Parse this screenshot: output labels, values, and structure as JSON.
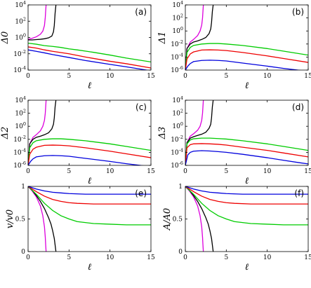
{
  "colors": {
    "magenta": "#dd00dd",
    "black": "#000000",
    "green": "#00cc00",
    "red": "#ee0000",
    "blue": "#0000dd"
  },
  "chart_data": [
    {
      "panel": "(a)",
      "type": "line",
      "ylabel": "Δ0",
      "xlabel": "ℓ",
      "xlim": [
        0,
        15
      ],
      "ylim": [
        0.0001,
        10000
      ],
      "yscale": "log",
      "xticks": [
        0,
        5,
        10,
        15
      ],
      "yticks": [
        {
          "v": 0.0001,
          "e": "-4"
        },
        {
          "v": 0.01,
          "e": "-2"
        },
        {
          "v": 1,
          "e": "0"
        },
        {
          "v": 100,
          "e": "2"
        },
        {
          "v": 10000,
          "e": "4"
        }
      ],
      "series": [
        {
          "color": "magenta",
          "x": [
            0,
            0.5,
            1,
            1.5,
            1.8,
            2.0,
            2.1,
            2.15,
            2.2
          ],
          "y": [
            0.6,
            0.8,
            1.2,
            2.5,
            6,
            30,
            300,
            2000,
            10000
          ]
        },
        {
          "color": "black",
          "x": [
            0,
            0.5,
            1,
            1.5,
            2,
            2.5,
            2.9,
            3.1,
            3.2,
            3.3,
            3.4
          ],
          "y": [
            0.5,
            0.5,
            0.55,
            0.6,
            0.7,
            0.9,
            1.5,
            5,
            30,
            1000,
            10000
          ]
        },
        {
          "color": "green",
          "x": [
            0,
            1,
            2,
            3,
            4,
            5,
            6,
            8,
            10,
            12,
            15
          ],
          "y": [
            0.2,
            0.15,
            0.1,
            0.08,
            0.06,
            0.04,
            0.03,
            0.015,
            0.007,
            0.003,
            0.001
          ]
        },
        {
          "color": "red",
          "x": [
            0,
            1,
            2,
            3,
            5,
            7,
            10,
            12,
            15
          ],
          "y": [
            0.07,
            0.05,
            0.03,
            0.02,
            0.01,
            0.004,
            0.0012,
            0.0006,
            0.00018
          ]
        },
        {
          "color": "blue",
          "x": [
            0,
            1,
            2,
            3,
            5,
            7,
            10,
            12,
            14,
            15
          ],
          "y": [
            0.03,
            0.02,
            0.013,
            0.008,
            0.0035,
            0.0015,
            0.0005,
            0.00025,
            0.00012,
            8e-05
          ]
        }
      ]
    },
    {
      "panel": "(b)",
      "type": "line",
      "ylabel": "Δ1",
      "xlabel": "ℓ",
      "xlim": [
        0,
        15
      ],
      "ylim": [
        1e-06,
        10000
      ],
      "yscale": "log",
      "xticks": [
        0,
        5,
        10,
        15
      ],
      "yticks": [
        {
          "v": 1e-06,
          "e": "-6"
        },
        {
          "v": 0.0001,
          "e": "-4"
        },
        {
          "v": 0.01,
          "e": "-2"
        },
        {
          "v": 1,
          "e": "0"
        },
        {
          "v": 100,
          "e": "2"
        },
        {
          "v": 10000,
          "e": "4"
        }
      ],
      "series": [
        {
          "color": "magenta",
          "x": [
            0,
            0.2,
            0.6,
            1,
            1.5,
            1.8,
            2.0,
            2.1,
            2.15,
            2.2
          ],
          "y": [
            1e-06,
            0.002,
            0.02,
            0.05,
            0.2,
            1,
            8,
            100,
            1000,
            10000
          ]
        },
        {
          "color": "black",
          "x": [
            0,
            0.2,
            0.6,
            1,
            1.5,
            2,
            2.5,
            2.9,
            3.1,
            3.2,
            3.3,
            3.4
          ],
          "y": [
            1e-06,
            0.002,
            0.01,
            0.02,
            0.03,
            0.05,
            0.1,
            0.4,
            2,
            20,
            1000,
            10000
          ]
        },
        {
          "color": "green",
          "x": [
            0,
            0.2,
            0.6,
            1,
            2,
            3,
            4,
            5,
            7,
            10,
            12,
            15
          ],
          "y": [
            1e-06,
            0.0005,
            0.003,
            0.006,
            0.01,
            0.012,
            0.012,
            0.01,
            0.006,
            0.002,
            0.0008,
            0.0002
          ]
        },
        {
          "color": "red",
          "x": [
            0,
            0.2,
            0.6,
            1,
            2,
            3,
            4,
            5,
            7,
            10,
            12,
            15
          ],
          "y": [
            1e-06,
            5e-05,
            0.0003,
            0.0006,
            0.0012,
            0.0013,
            0.0012,
            0.001,
            0.0005,
            0.00015,
            6e-05,
            1.5e-05
          ]
        },
        {
          "color": "blue",
          "x": [
            0,
            0.3,
            0.6,
            1,
            2,
            3,
            4,
            5,
            7,
            10,
            12,
            14,
            15
          ],
          "y": [
            1e-06,
            4e-06,
            1e-05,
            2e-05,
            3e-05,
            3.3e-05,
            3e-05,
            2.5e-05,
            1.2e-05,
            4e-06,
            1.8e-06,
            9e-07,
            6e-07
          ]
        }
      ]
    },
    {
      "panel": "(c)",
      "type": "line",
      "ylabel": "Δ2",
      "xlabel": "ℓ",
      "xlim": [
        0,
        15
      ],
      "ylim": [
        1e-06,
        10000
      ],
      "yscale": "log",
      "xticks": [
        0,
        5,
        10,
        15
      ],
      "yticks": [
        {
          "v": 1e-06,
          "e": "-6"
        },
        {
          "v": 0.0001,
          "e": "-4"
        },
        {
          "v": 0.01,
          "e": "-2"
        },
        {
          "v": 1,
          "e": "0"
        },
        {
          "v": 100,
          "e": "2"
        },
        {
          "v": 10000,
          "e": "4"
        }
      ],
      "series": [
        {
          "color": "magenta",
          "x": [
            0,
            0.2,
            0.6,
            1,
            1.5,
            1.8,
            2.0,
            2.1,
            2.15,
            2.2
          ],
          "y": [
            1e-06,
            0.002,
            0.02,
            0.05,
            0.2,
            1,
            8,
            100,
            1000,
            10000
          ]
        },
        {
          "color": "black",
          "x": [
            0,
            0.2,
            0.6,
            1,
            1.5,
            2,
            2.5,
            2.9,
            3.1,
            3.2,
            3.3,
            3.4
          ],
          "y": [
            1e-06,
            0.002,
            0.01,
            0.02,
            0.03,
            0.05,
            0.1,
            0.4,
            2,
            20,
            1000,
            10000
          ]
        },
        {
          "color": "green",
          "x": [
            0,
            0.2,
            0.6,
            1,
            2,
            3,
            4,
            5,
            7,
            10,
            12,
            15
          ],
          "y": [
            1e-06,
            0.0005,
            0.003,
            0.006,
            0.01,
            0.012,
            0.012,
            0.01,
            0.006,
            0.002,
            0.0008,
            0.0002
          ]
        },
        {
          "color": "red",
          "x": [
            0,
            0.2,
            0.6,
            1,
            2,
            3,
            4,
            5,
            7,
            10,
            12,
            15
          ],
          "y": [
            1e-06,
            5e-05,
            0.0003,
            0.0006,
            0.0012,
            0.0013,
            0.0012,
            0.001,
            0.0005,
            0.00015,
            6e-05,
            1.5e-05
          ]
        },
        {
          "color": "blue",
          "x": [
            0,
            0.3,
            0.6,
            1,
            2,
            3,
            4,
            5,
            7,
            10,
            12,
            14,
            15
          ],
          "y": [
            1e-06,
            4e-06,
            1e-05,
            2e-05,
            3e-05,
            3.3e-05,
            3e-05,
            2.5e-05,
            1.2e-05,
            4e-06,
            1.8e-06,
            9e-07,
            6e-07
          ]
        }
      ]
    },
    {
      "panel": "(d)",
      "type": "line",
      "ylabel": "Δ3",
      "xlabel": "ℓ",
      "xlim": [
        0,
        15
      ],
      "ylim": [
        1e-06,
        10000
      ],
      "yscale": "log",
      "xticks": [
        0,
        5,
        10,
        15
      ],
      "yticks": [
        {
          "v": 1e-06,
          "e": "-6"
        },
        {
          "v": 0.0001,
          "e": "-4"
        },
        {
          "v": 0.01,
          "e": "-2"
        },
        {
          "v": 1,
          "e": "0"
        },
        {
          "v": 100,
          "e": "2"
        },
        {
          "v": 10000,
          "e": "4"
        }
      ],
      "series": [
        {
          "color": "magenta",
          "x": [
            0,
            0.2,
            0.6,
            1,
            1.5,
            1.8,
            2.0,
            2.1,
            2.15,
            2.2
          ],
          "y": [
            1e-06,
            0.003,
            0.03,
            0.07,
            0.25,
            1,
            8,
            100,
            1000,
            10000
          ]
        },
        {
          "color": "black",
          "x": [
            0,
            0.2,
            0.6,
            1,
            1.5,
            2,
            2.5,
            2.9,
            3.1,
            3.2,
            3.3,
            3.4
          ],
          "y": [
            1e-06,
            0.003,
            0.015,
            0.025,
            0.04,
            0.06,
            0.12,
            0.5,
            2,
            20,
            1000,
            10000
          ]
        },
        {
          "color": "green",
          "x": [
            0,
            0.2,
            0.6,
            1,
            2,
            3,
            4,
            5,
            7,
            10,
            12,
            15
          ],
          "y": [
            1e-06,
            0.002,
            0.008,
            0.012,
            0.015,
            0.015,
            0.013,
            0.011,
            0.006,
            0.002,
            0.0008,
            0.0002
          ]
        },
        {
          "color": "red",
          "x": [
            0,
            0.2,
            0.6,
            1,
            2,
            3,
            4,
            5,
            7,
            10,
            12,
            15
          ],
          "y": [
            1e-06,
            0.0005,
            0.0015,
            0.002,
            0.0022,
            0.002,
            0.0017,
            0.0013,
            0.0006,
            0.0002,
            8e-05,
            2e-05
          ]
        },
        {
          "color": "blue",
          "x": [
            0,
            0.3,
            0.6,
            1,
            2,
            3,
            4,
            5,
            7,
            10,
            12,
            14,
            15
          ],
          "y": [
            1e-06,
            4e-05,
            0.0001,
            0.00015,
            0.00018,
            0.00016,
            0.00013,
            0.0001,
            5e-05,
            1.5e-05,
            6e-06,
            2.5e-06,
            1.7e-06
          ]
        }
      ]
    },
    {
      "panel": "(e)",
      "type": "line",
      "ylabel": "v/v0",
      "xlabel": "ℓ",
      "xlim": [
        0,
        15
      ],
      "ylim": [
        0,
        1
      ],
      "yscale": "linear",
      "xticks": [
        0,
        5,
        10,
        15
      ],
      "yticks": [
        {
          "v": 0,
          "t": "0"
        },
        {
          "v": 0.5,
          "t": "0.5"
        },
        {
          "v": 1,
          "t": "1"
        }
      ],
      "series": [
        {
          "color": "magenta",
          "x": [
            0,
            0.5,
            1,
            1.5,
            1.8,
            2.0,
            2.1,
            2.15,
            2.2
          ],
          "y": [
            1,
            0.93,
            0.84,
            0.7,
            0.55,
            0.38,
            0.22,
            0.1,
            0
          ]
        },
        {
          "color": "black",
          "x": [
            0,
            0.5,
            1,
            1.5,
            2,
            2.5,
            2.8,
            3.0,
            3.2,
            3.3,
            3.4
          ],
          "y": [
            1,
            0.94,
            0.86,
            0.77,
            0.66,
            0.52,
            0.42,
            0.32,
            0.2,
            0.1,
            0
          ]
        },
        {
          "color": "green",
          "x": [
            0,
            1,
            2,
            3,
            4,
            5,
            6,
            8,
            10,
            12,
            15
          ],
          "y": [
            1,
            0.88,
            0.74,
            0.63,
            0.55,
            0.5,
            0.46,
            0.43,
            0.42,
            0.41,
            0.41
          ]
        },
        {
          "color": "red",
          "x": [
            0,
            1,
            2,
            3,
            4,
            5,
            6,
            8,
            10,
            15
          ],
          "y": [
            1,
            0.92,
            0.85,
            0.8,
            0.77,
            0.75,
            0.74,
            0.73,
            0.73,
            0.73
          ]
        },
        {
          "color": "blue",
          "x": [
            0,
            1,
            2,
            3,
            4,
            5,
            7,
            10,
            15
          ],
          "y": [
            1,
            0.96,
            0.93,
            0.91,
            0.9,
            0.89,
            0.88,
            0.88,
            0.88
          ]
        }
      ]
    },
    {
      "panel": "(f)",
      "type": "line",
      "ylabel": "A/A0",
      "xlabel": "ℓ",
      "xlim": [
        0,
        15
      ],
      "ylim": [
        0,
        1
      ],
      "yscale": "linear",
      "xticks": [
        0,
        5,
        10,
        15
      ],
      "yticks": [
        {
          "v": 0,
          "t": "0"
        },
        {
          "v": 0.5,
          "t": "0.5"
        },
        {
          "v": 1,
          "t": "1"
        }
      ],
      "series": [
        {
          "color": "magenta",
          "x": [
            0,
            0.5,
            1,
            1.5,
            1.8,
            2.0,
            2.1,
            2.15,
            2.2
          ],
          "y": [
            1,
            0.93,
            0.84,
            0.7,
            0.55,
            0.38,
            0.22,
            0.1,
            0
          ]
        },
        {
          "color": "black",
          "x": [
            0,
            0.5,
            1,
            1.5,
            2,
            2.5,
            2.8,
            3.0,
            3.2,
            3.3,
            3.4
          ],
          "y": [
            1,
            0.94,
            0.86,
            0.77,
            0.66,
            0.52,
            0.42,
            0.32,
            0.2,
            0.1,
            0
          ]
        },
        {
          "color": "green",
          "x": [
            0,
            1,
            2,
            3,
            4,
            5,
            6,
            8,
            10,
            12,
            15
          ],
          "y": [
            1,
            0.88,
            0.74,
            0.63,
            0.55,
            0.5,
            0.46,
            0.43,
            0.42,
            0.41,
            0.41
          ]
        },
        {
          "color": "red",
          "x": [
            0,
            1,
            2,
            3,
            4,
            5,
            6,
            8,
            10,
            15
          ],
          "y": [
            1,
            0.92,
            0.85,
            0.8,
            0.77,
            0.75,
            0.74,
            0.73,
            0.73,
            0.73
          ]
        },
        {
          "color": "blue",
          "x": [
            0,
            1,
            2,
            3,
            4,
            5,
            7,
            10,
            15
          ],
          "y": [
            1,
            0.96,
            0.93,
            0.91,
            0.9,
            0.89,
            0.88,
            0.88,
            0.88
          ]
        }
      ]
    }
  ]
}
